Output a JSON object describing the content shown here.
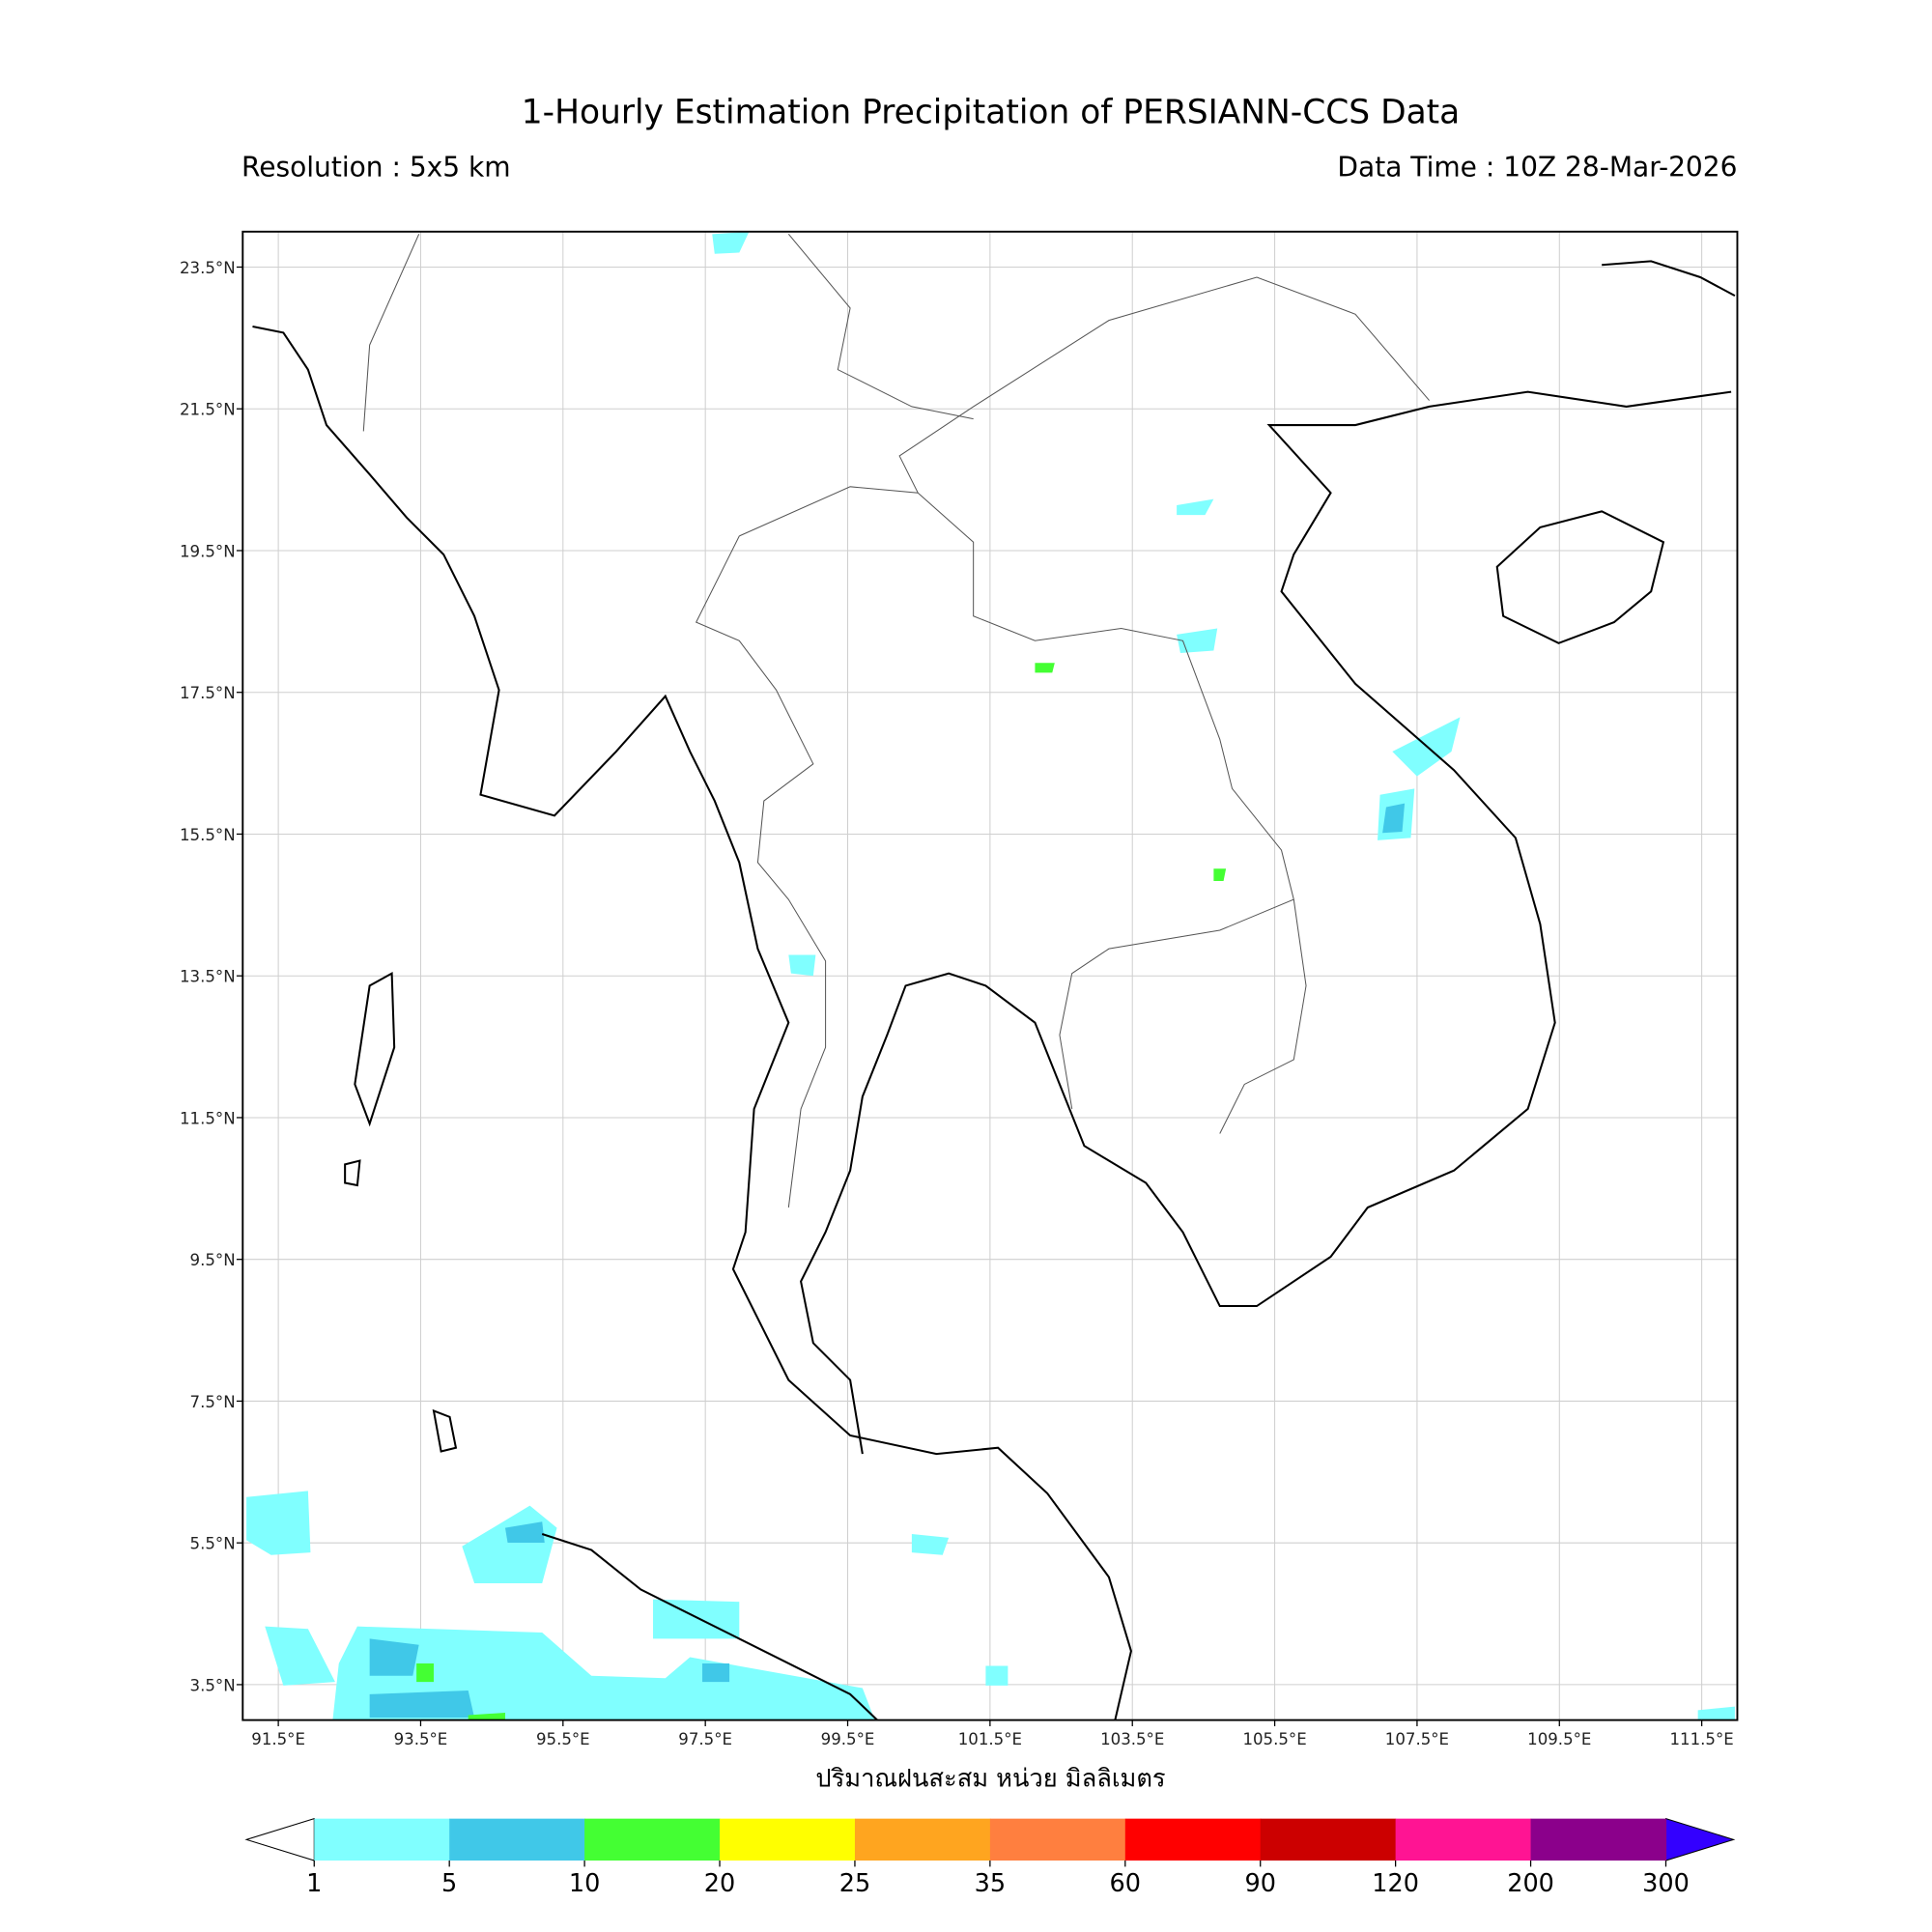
{
  "title": "1-Hourly Estimation Precipitation of PERSIANN-CCS Data",
  "subtitle_left": "Resolution : 5x5 km",
  "subtitle_right": "Data Time : 10Z 28-Mar-2026",
  "map": {
    "xlim": [
      91,
      112
    ],
    "ylim": [
      3,
      24
    ],
    "xticks": [
      {
        "value": 91.5,
        "label": "91.5°E"
      },
      {
        "value": 93.5,
        "label": "93.5°E"
      },
      {
        "value": 95.5,
        "label": "95.5°E"
      },
      {
        "value": 97.5,
        "label": "97.5°E"
      },
      {
        "value": 99.5,
        "label": "99.5°E"
      },
      {
        "value": 101.5,
        "label": "101.5°E"
      },
      {
        "value": 103.5,
        "label": "103.5°E"
      },
      {
        "value": 105.5,
        "label": "105.5°E"
      },
      {
        "value": 107.5,
        "label": "107.5°E"
      },
      {
        "value": 109.5,
        "label": "109.5°E"
      },
      {
        "value": 111.5,
        "label": "111.5°E"
      }
    ],
    "yticks": [
      {
        "value": 3.5,
        "label": "3.5°N"
      },
      {
        "value": 5.5,
        "label": "5.5°N"
      },
      {
        "value": 7.5,
        "label": "7.5°N"
      },
      {
        "value": 9.5,
        "label": "9.5°N"
      },
      {
        "value": 11.5,
        "label": "11.5°N"
      },
      {
        "value": 13.5,
        "label": "13.5°N"
      },
      {
        "value": 15.5,
        "label": "15.5°N"
      },
      {
        "value": 17.5,
        "label": "17.5°N"
      },
      {
        "value": 19.5,
        "label": "19.5°N"
      },
      {
        "value": 21.5,
        "label": "21.5°N"
      },
      {
        "value": 23.5,
        "label": "23.5°N"
      }
    ],
    "grid": true,
    "xlabel": "ปริมาณฝนสะสม หน่วย มิลลิเมตร"
  },
  "colorbar": {
    "ticks": [
      1,
      5,
      10,
      20,
      25,
      35,
      60,
      90,
      120,
      200,
      300
    ],
    "colors": [
      "#80ffff",
      "#40c8e8",
      "#44ff33",
      "#ffff00",
      "#ffa51f",
      "#ff7f3f",
      "#ff0000",
      "#cc0000",
      "#ff1493",
      "#8b008b"
    ],
    "under_color": "#ffffff",
    "over_color": "#3300ff"
  }
}
